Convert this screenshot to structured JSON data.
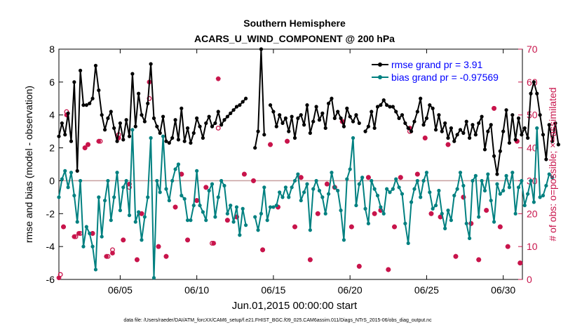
{
  "chart_data": {
    "type": "line",
    "title": "Southern Hemisphere",
    "subtitle": "ACARS_U_WIND_COMPONENT @ 200 hPa",
    "xlabel": "Jun.01,2015 00:00:00 start",
    "ylabel_left": "rmse and bias (model - observation)",
    "ylabel_right": "# of obs: o=possible; ×=assimilated",
    "footnote": "data file: /Users/raeder/DAI/ATM_forcXX/CAM6_setup/f.e21.FHIST_BGC.f09_025.CAM6assim.011/Diags_NTrS_2015-06/obs_diag_output.nc",
    "xlim": [
      1,
      31.25
    ],
    "ylim_left": [
      -6,
      8
    ],
    "ylim_right": [
      0,
      70
    ],
    "x_ticks": [
      5,
      10,
      15,
      20,
      25,
      30
    ],
    "x_tick_labels": [
      "06/05",
      "06/10",
      "06/15",
      "06/20",
      "06/25",
      "06/30"
    ],
    "y_left_ticks": [
      -6,
      -4,
      -2,
      0,
      2,
      4,
      6,
      8
    ],
    "y_right_ticks": [
      0,
      10,
      20,
      30,
      40,
      50,
      60,
      70
    ],
    "legend_position": "top-right",
    "colors": {
      "rmse": "#000000",
      "bias": "#008080",
      "obs": "#c8144b",
      "zero_line": "#c8a0a0"
    },
    "series": [
      {
        "name": "rmse grand pr = 3.91",
        "axis": "left",
        "y": [
          2.7,
          3.5,
          2.8,
          4.1,
          2.4,
          6.0,
          0.6,
          6.7,
          4.6,
          4.6,
          4.7,
          5.0,
          7.0,
          5.5,
          4.0,
          3.1,
          3.8,
          4.2,
          3.2,
          2.4,
          3.5,
          2.5,
          3.7,
          2.7,
          6.5,
          3.3,
          5.3,
          4.0,
          3.6,
          4.7,
          7.1,
          3.8,
          3.3,
          2.9,
          3.9,
          2.4,
          2.3,
          2.6,
          3.7,
          2.5,
          4.4,
          2.4,
          3.2,
          2.3,
          2.9,
          3.8,
          3.3,
          2.6,
          3.5,
          3.9,
          3.3,
          3.5,
          4.2,
          3.4,
          3.7,
          3.9,
          4.1,
          4.3,
          4.5,
          4.6,
          4.8,
          5.0,
          null,
          null,
          2.0,
          3.0,
          8.0,
          2.8,
          null,
          4.6,
          4.2,
          3.3,
          4.0,
          3.5,
          3.8,
          3.0,
          3.9,
          2.6,
          3.8,
          4.0,
          3.4,
          4.6,
          2.9,
          3.6,
          4.5,
          3.7,
          4.1,
          3.2,
          4.7,
          5.0,
          3.8,
          4.2,
          3.8,
          3.3,
          4.4,
          3.9,
          3.6,
          4.0,
          3.5,
          null,
          3.0,
          3.3,
          4.2,
          3.2,
          4.5,
          4.6,
          4.9,
          4.6,
          4.5,
          4.5,
          4.2,
          3.8,
          4.0,
          3.5,
          3.2,
          3.0,
          3.6,
          4.2,
          5.0,
          3.4,
          3.8,
          4.6,
          4.4,
          3.1,
          4.0,
          3.0,
          3.5,
          2.6,
          3.2,
          2.4,
          2.8,
          3.1,
          2.9,
          3.6,
          2.6,
          3.4,
          2.8,
          3.5,
          3.9,
          1.9,
          3.0,
          3.4,
          1.5,
          0.4,
          1.8,
          3.0,
          4.3,
          2.3,
          4.0,
          2.5,
          3.8,
          2.8,
          3.2,
          2.6,
          5.3,
          6.0,
          5.3,
          4.0,
          2.8,
          1.3,
          3.4,
          2.4,
          3.5,
          2.2
        ],
        "x0": 1,
        "dx": 0.2
      },
      {
        "name": "bias grand pr = -0.97569",
        "axis": "left",
        "y": [
          -1.0,
          0.1,
          0.6,
          -0.4,
          0.5,
          -0.9,
          -2.5,
          0.0,
          -4.0,
          -2.8,
          -3.2,
          -4.0,
          -5.4,
          -1.0,
          -3.4,
          -1.2,
          0.0,
          -2.4,
          -1.0,
          0.5,
          -1.8,
          -0.4,
          0.0,
          -2.1,
          3.1,
          -2.5,
          -1.9,
          -3.6,
          -2.2,
          -1.0,
          2.6,
          -5.9,
          0.0,
          -0.7,
          2.7,
          -0.5,
          -1.2,
          0.0,
          0.7,
          1.0,
          -0.9,
          -1.1,
          -2.4,
          -2.4,
          -1.5,
          0.6,
          -1.5,
          -1.9,
          -2.4,
          -0.6,
          -0.2,
          -2.2,
          -1.0,
          0.0,
          -0.3,
          -2.0,
          -1.5,
          -2.5,
          -1.6,
          -3.3,
          -1.7,
          -2.7,
          null,
          null,
          -2.2,
          -3.0,
          -2.0,
          -0.4,
          -2.4,
          -1.6,
          -1.6,
          -1.5,
          -0.7,
          -1.0,
          -0.4,
          -1.0,
          -0.4,
          0.0,
          0.4,
          -1.2,
          -0.7,
          -0.2,
          -3.0,
          -0.5,
          0.0,
          -0.6,
          -1.0,
          -2.0,
          -0.8,
          0.5,
          -0.4,
          -0.6,
          -1.8,
          -3.6,
          0.1,
          0.7,
          2.6,
          -1.5,
          -0.2,
          0.2,
          -1.7,
          -2.6,
          0.0,
          -0.5,
          -0.9,
          -1.6,
          -2.0,
          -0.5,
          -0.7,
          -0.5,
          0.1,
          -0.4,
          -0.8,
          -2.6,
          -3.8,
          -1.3,
          -0.5,
          0.0,
          -1.0,
          0.0,
          0.5,
          -0.7,
          -1.7,
          -1.5,
          -0.6,
          -2.0,
          -2.9,
          -1.8,
          -2.4,
          -0.9,
          -0.5,
          0.5,
          -0.3,
          -2.6,
          -3.5,
          0.0,
          0.3,
          -2.2,
          0.0,
          -0.6,
          0.4,
          -1.2,
          -2.5,
          -0.2,
          -0.8,
          -0.6,
          0.3,
          -0.4,
          0.5,
          -2.0,
          -0.4,
          0.0,
          -1.5,
          -0.8,
          0.0,
          -1.3,
          3.2,
          -1.0,
          -0.9,
          -0.3,
          0.4,
          0.2
        ],
        "x0": 1,
        "dx": 0.2
      },
      {
        "name": "possible",
        "axis": "right",
        "marker": "o",
        "points": [
          [
            1.1,
            1.5
          ],
          [
            1.3,
            16
          ],
          [
            1.5,
            51
          ],
          [
            2.1,
            13
          ],
          [
            2.4,
            14
          ],
          [
            2.7,
            40
          ],
          [
            2.9,
            41
          ],
          [
            3.2,
            14
          ],
          [
            3.7,
            42
          ],
          [
            4.2,
            7
          ],
          [
            4.5,
            9
          ],
          [
            4.9,
            44
          ],
          [
            5.2,
            12
          ],
          [
            5.6,
            28
          ],
          [
            6.1,
            6
          ],
          [
            6.4,
            20
          ],
          [
            6.9,
            55
          ],
          [
            7.5,
            10
          ],
          [
            8.0,
            7
          ],
          [
            8.6,
            22
          ],
          [
            9.0,
            32
          ],
          [
            9.4,
            12
          ],
          [
            10.0,
            24
          ],
          [
            10.6,
            28
          ],
          [
            11.0,
            11
          ],
          [
            11.4,
            46
          ],
          [
            12.0,
            18
          ],
          [
            12.6,
            19
          ],
          [
            13.1,
            32
          ],
          [
            13.7,
            30
          ],
          [
            14.3,
            9
          ],
          [
            14.8,
            41
          ],
          [
            15.3,
            22
          ],
          [
            15.9,
            42
          ],
          [
            16.4,
            16
          ],
          [
            16.8,
            31
          ],
          [
            17.4,
            6
          ],
          [
            17.9,
            20
          ],
          [
            18.5,
            29
          ],
          [
            19.0,
            28
          ],
          [
            19.5,
            48
          ],
          [
            20.1,
            16
          ],
          [
            20.6,
            4
          ],
          [
            21.2,
            31
          ],
          [
            21.6,
            20
          ],
          [
            22.0,
            21
          ],
          [
            22.5,
            3
          ],
          [
            22.9,
            16
          ],
          [
            23.3,
            31
          ],
          [
            23.9,
            45
          ],
          [
            24.4,
            32
          ],
          [
            24.9,
            43
          ],
          [
            25.3,
            20
          ],
          [
            25.9,
            19
          ],
          [
            26.4,
            41
          ],
          [
            26.9,
            7
          ],
          [
            27.4,
            25
          ],
          [
            27.9,
            17
          ],
          [
            28.4,
            6
          ],
          [
            28.9,
            21
          ],
          [
            29.4,
            52
          ],
          [
            29.8,
            16
          ],
          [
            30.3,
            10
          ],
          [
            30.9,
            42
          ],
          [
            31.1,
            5
          ]
        ]
      },
      {
        "name": "assimilated",
        "axis": "right",
        "marker": "x",
        "points": [
          [
            1.0,
            0.5
          ],
          [
            1.3,
            16
          ],
          [
            1.5,
            50
          ],
          [
            2.0,
            13
          ],
          [
            2.3,
            14
          ],
          [
            2.7,
            40
          ],
          [
            2.9,
            41
          ],
          [
            3.2,
            14
          ],
          [
            3.6,
            42
          ],
          [
            4.1,
            7
          ],
          [
            4.5,
            8
          ],
          [
            4.9,
            43
          ],
          [
            5.2,
            12
          ],
          [
            5.6,
            29
          ],
          [
            6.1,
            6
          ],
          [
            6.4,
            20
          ],
          [
            6.9,
            60
          ],
          [
            7.5,
            10
          ],
          [
            8.0,
            7
          ],
          [
            8.6,
            22
          ],
          [
            9.0,
            32
          ],
          [
            9.4,
            12
          ],
          [
            10.0,
            24
          ],
          [
            10.6,
            28
          ],
          [
            11.1,
            11
          ],
          [
            11.4,
            61
          ],
          [
            12.0,
            18
          ],
          [
            12.6,
            19
          ],
          [
            13.1,
            32
          ],
          [
            13.7,
            30
          ],
          [
            14.3,
            9
          ],
          [
            14.8,
            41
          ],
          [
            15.3,
            22
          ],
          [
            15.9,
            42
          ],
          [
            16.4,
            16
          ],
          [
            16.8,
            31
          ],
          [
            17.4,
            6
          ],
          [
            17.9,
            20
          ],
          [
            18.5,
            29
          ],
          [
            19.0,
            28
          ],
          [
            19.5,
            48
          ],
          [
            20.1,
            16
          ],
          [
            20.6,
            4
          ],
          [
            21.2,
            31
          ],
          [
            21.6,
            20
          ],
          [
            22.0,
            21
          ],
          [
            22.5,
            3
          ],
          [
            22.9,
            16
          ],
          [
            23.3,
            31
          ],
          [
            23.9,
            46
          ],
          [
            24.4,
            32
          ],
          [
            24.9,
            43
          ],
          [
            25.3,
            20
          ],
          [
            25.9,
            19
          ],
          [
            26.4,
            41
          ],
          [
            26.9,
            7
          ],
          [
            27.4,
            25
          ],
          [
            27.9,
            17
          ],
          [
            28.4,
            6
          ],
          [
            28.9,
            21
          ],
          [
            29.4,
            52
          ],
          [
            29.8,
            16
          ],
          [
            30.3,
            10
          ],
          [
            30.9,
            42
          ],
          [
            31.1,
            5
          ]
        ]
      }
    ]
  }
}
